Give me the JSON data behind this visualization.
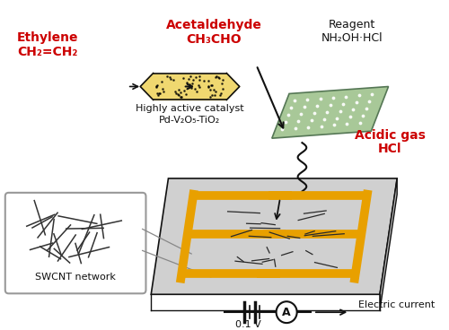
{
  "bg_color": "#ffffff",
  "ethylene_label1": "Ethylene",
  "ethylene_label2": "CH₂=CH₂",
  "catalyst_label1": "Highly active catalyst",
  "catalyst_label2": "Pd-V₂O₅-TiO₂",
  "acetaldehyde_label1": "Acetaldehyde",
  "acetaldehyde_label2": "CH₃CHO",
  "reagent_label1": "Reagent",
  "reagent_label2": "NH₂OH·HCl",
  "acidic_label1": "Acidic gas",
  "acidic_label2": "HCl",
  "swcnt_label": "SWCNT network",
  "voltage_label": "0.1 V",
  "current_label": "Electric current",
  "red_color": "#cc0000",
  "gold_color": "#E8A000",
  "green_color": "#A8C898",
  "dark_color": "#111111",
  "tube_fill": "#F0D870",
  "chip_top_color": "#D0D0D0",
  "chip_front_color": "#E0E0E0",
  "chip_side_color": "#B8B8B8"
}
